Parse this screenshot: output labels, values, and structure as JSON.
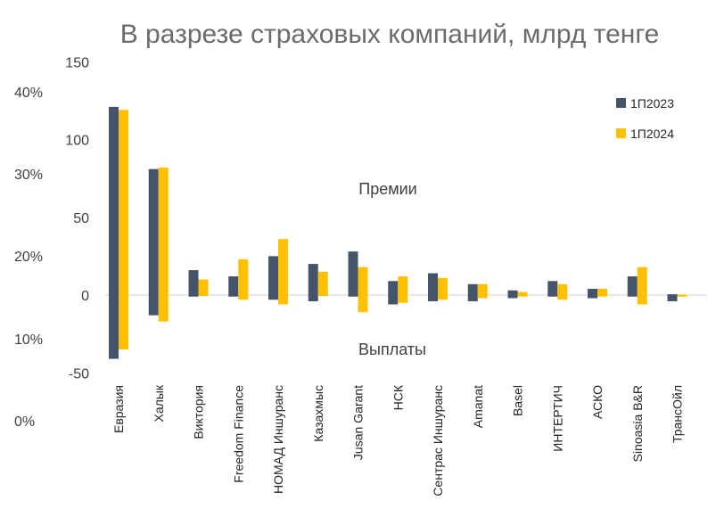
{
  "chart_data": {
    "type": "bar",
    "title": "В разрезе страховых компаний, млрд тенге",
    "categories": [
      "Евразия",
      "Халык",
      "Виктория",
      "Freedom Finance",
      "НОМАД Иншуранс",
      "Казахмыс",
      "Jusan Garant",
      "НСК",
      "Сентрас Иншуранс",
      "Amanat",
      "Basel",
      "ИНТЕРТИЧ",
      "АСКО",
      "Sinoasia B&R",
      "ТрансОйл"
    ],
    "series": [
      {
        "name": "1П2023",
        "color": "#44546a",
        "premiums": [
          121,
          81,
          16,
          12,
          25,
          20,
          28,
          9,
          14,
          7,
          3,
          9,
          4,
          12,
          0.5
        ],
        "payouts": [
          -41,
          -13,
          -1,
          -1,
          -3,
          -4,
          -1,
          -6,
          -4,
          -4,
          -2,
          -1,
          -2,
          -1,
          -4
        ]
      },
      {
        "name": "1П2024",
        "color": "#ffc000",
        "premiums": [
          119,
          82,
          10,
          23,
          36,
          15,
          18,
          12,
          11,
          7,
          2,
          7,
          4,
          18,
          0.3
        ],
        "payouts": [
          -35,
          -17,
          -0.5,
          -3,
          -6,
          -0.5,
          -11,
          -5,
          -3,
          -2,
          -1,
          -3,
          -1,
          -6,
          -1
        ]
      }
    ],
    "left_axis": {
      "ticks": [
        "40%",
        "30%",
        "20%",
        "10%",
        "0%"
      ]
    },
    "right_axis": {
      "ticks": [
        "150",
        "100",
        "50",
        "0",
        "-50"
      ],
      "ylim": [
        -50,
        150
      ]
    },
    "annotations": {
      "premiums_label": "Премии",
      "payouts_label": "Выплаты"
    },
    "legend": {
      "position": "top-right"
    },
    "grid": false
  }
}
